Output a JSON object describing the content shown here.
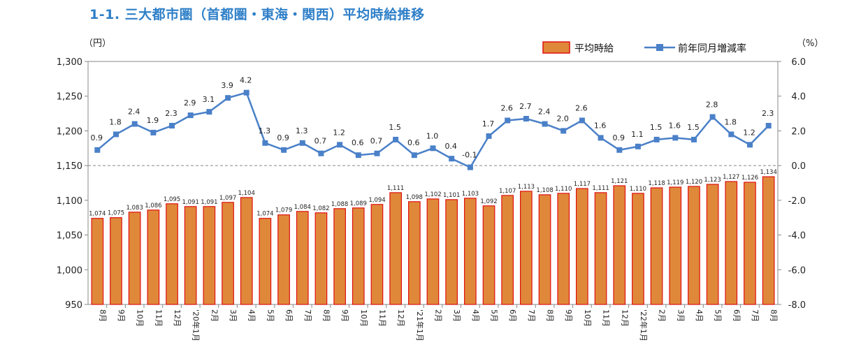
{
  "title": "1-1.  三大都市圏（首都圏・東海・関西）平均時給推移",
  "chart_data": {
    "type": "bar+line",
    "left_unit": "（円）",
    "right_unit": "（%）",
    "categories": [
      "8月",
      "9月",
      "10月",
      "11月",
      "12月",
      "'20年1月",
      "2月",
      "3月",
      "4月",
      "5月",
      "6月",
      "7月",
      "8月",
      "9月",
      "10月",
      "11月",
      "12月",
      "'21年1月",
      "2月",
      "3月",
      "4月",
      "5月",
      "6月",
      "7月",
      "8月",
      "9月",
      "10月",
      "11月",
      "12月",
      "'22年1月",
      "2月",
      "3月",
      "4月",
      "5月",
      "6月",
      "7月",
      "8月"
    ],
    "series": [
      {
        "name": "平均時給",
        "type": "bar",
        "axis": "left",
        "color": "#e0883a",
        "edge": "#e01010",
        "values": [
          1074,
          1075,
          1083,
          1086,
          1095,
          1091,
          1091,
          1097,
          1104,
          1074,
          1079,
          1084,
          1082,
          1088,
          1089,
          1094,
          1111,
          1098,
          1102,
          1101,
          1103,
          1092,
          1107,
          1113,
          1108,
          1110,
          1117,
          1111,
          1121,
          1110,
          1118,
          1119,
          1120,
          1123,
          1127,
          1126,
          1134
        ]
      },
      {
        "name": "前年同月増減率",
        "type": "line",
        "axis": "right",
        "color": "#4a80c8",
        "values": [
          0.9,
          1.8,
          2.4,
          1.9,
          2.3,
          2.9,
          3.1,
          3.9,
          4.2,
          1.3,
          0.9,
          1.3,
          0.7,
          1.2,
          0.6,
          0.7,
          1.5,
          0.6,
          1.0,
          0.4,
          -0.1,
          1.7,
          2.6,
          2.7,
          2.4,
          2.0,
          2.6,
          1.6,
          0.9,
          1.1,
          1.5,
          1.6,
          1.5,
          2.8,
          1.8,
          1.2,
          2.3
        ]
      }
    ],
    "y_left": {
      "min": 950,
      "max": 1300,
      "ticks": [
        "950",
        "1,000",
        "1,050",
        "1,100",
        "1,150",
        "1,200",
        "1,250",
        "1,300"
      ]
    },
    "y_right": {
      "min": -8.0,
      "max": 6.0,
      "ticks": [
        "-8.0",
        "-6.0",
        "-4.0",
        "-2.0",
        "0.0",
        "2.0",
        "4.0",
        "6.0"
      ]
    },
    "reference_line": {
      "axis": "right",
      "value": 0.0,
      "style": "dashed"
    },
    "legend_position": "top-right",
    "grid": false
  }
}
